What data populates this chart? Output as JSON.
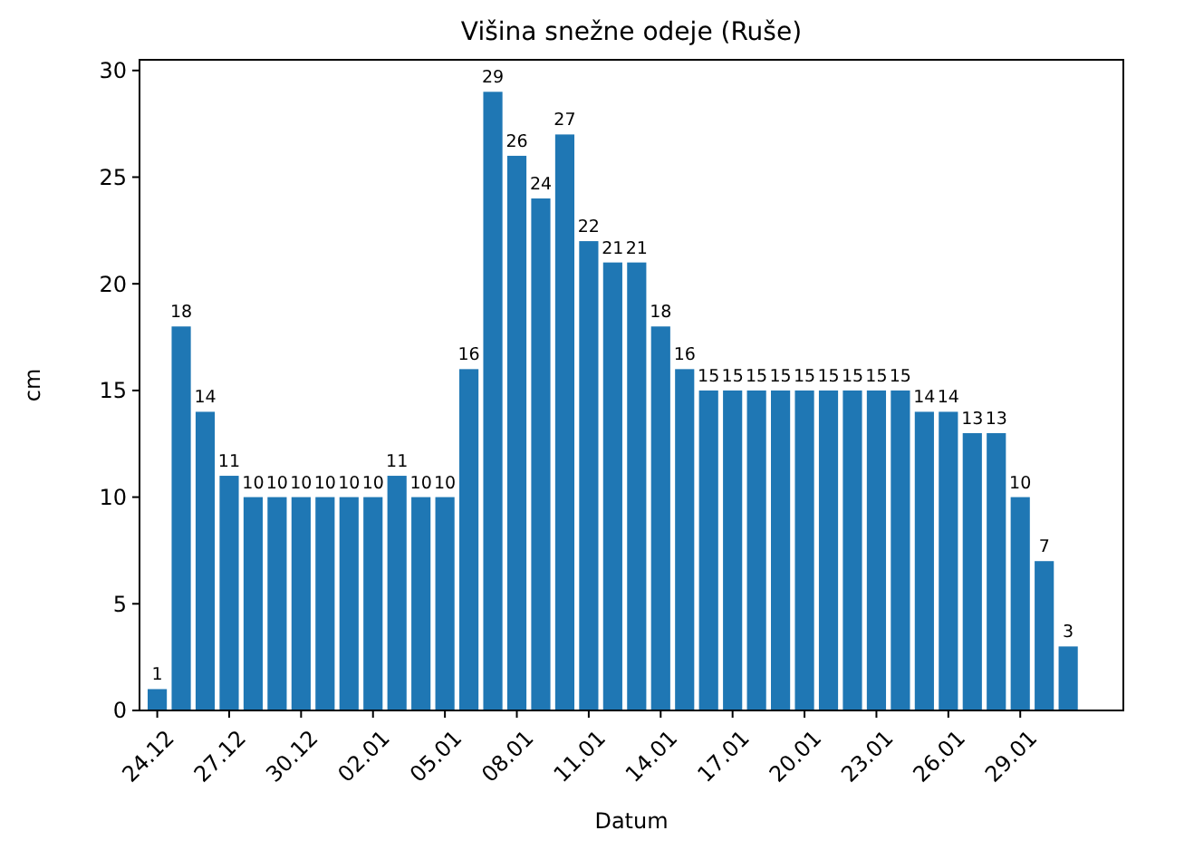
{
  "chart_data": {
    "type": "bar",
    "title": "Višina snežne odeje (Ruše)",
    "xlabel": "Datum",
    "ylabel": "cm",
    "categories": [
      "24.12",
      null,
      null,
      "27.12",
      null,
      null,
      "30.12",
      null,
      null,
      "02.01",
      null,
      null,
      "05.01",
      null,
      null,
      "08.01",
      null,
      null,
      "11.01",
      null,
      null,
      "14.01",
      null,
      null,
      "17.01",
      null,
      null,
      "20.01",
      null,
      null,
      "23.01",
      null,
      null,
      "26.01",
      null,
      null,
      "29.01",
      null,
      null
    ],
    "values": [
      1,
      18,
      14,
      11,
      10,
      10,
      10,
      10,
      10,
      10,
      11,
      10,
      10,
      16,
      29,
      26,
      24,
      27,
      22,
      21,
      21,
      18,
      16,
      15,
      15,
      15,
      15,
      15,
      15,
      15,
      15,
      15,
      14,
      14,
      13,
      13,
      10,
      7,
      3
    ],
    "color": "#1f77b4",
    "data_labels": true,
    "ylim": [
      0,
      30.5
    ],
    "yticks": [
      0,
      5,
      10,
      15,
      20,
      25,
      30
    ]
  }
}
